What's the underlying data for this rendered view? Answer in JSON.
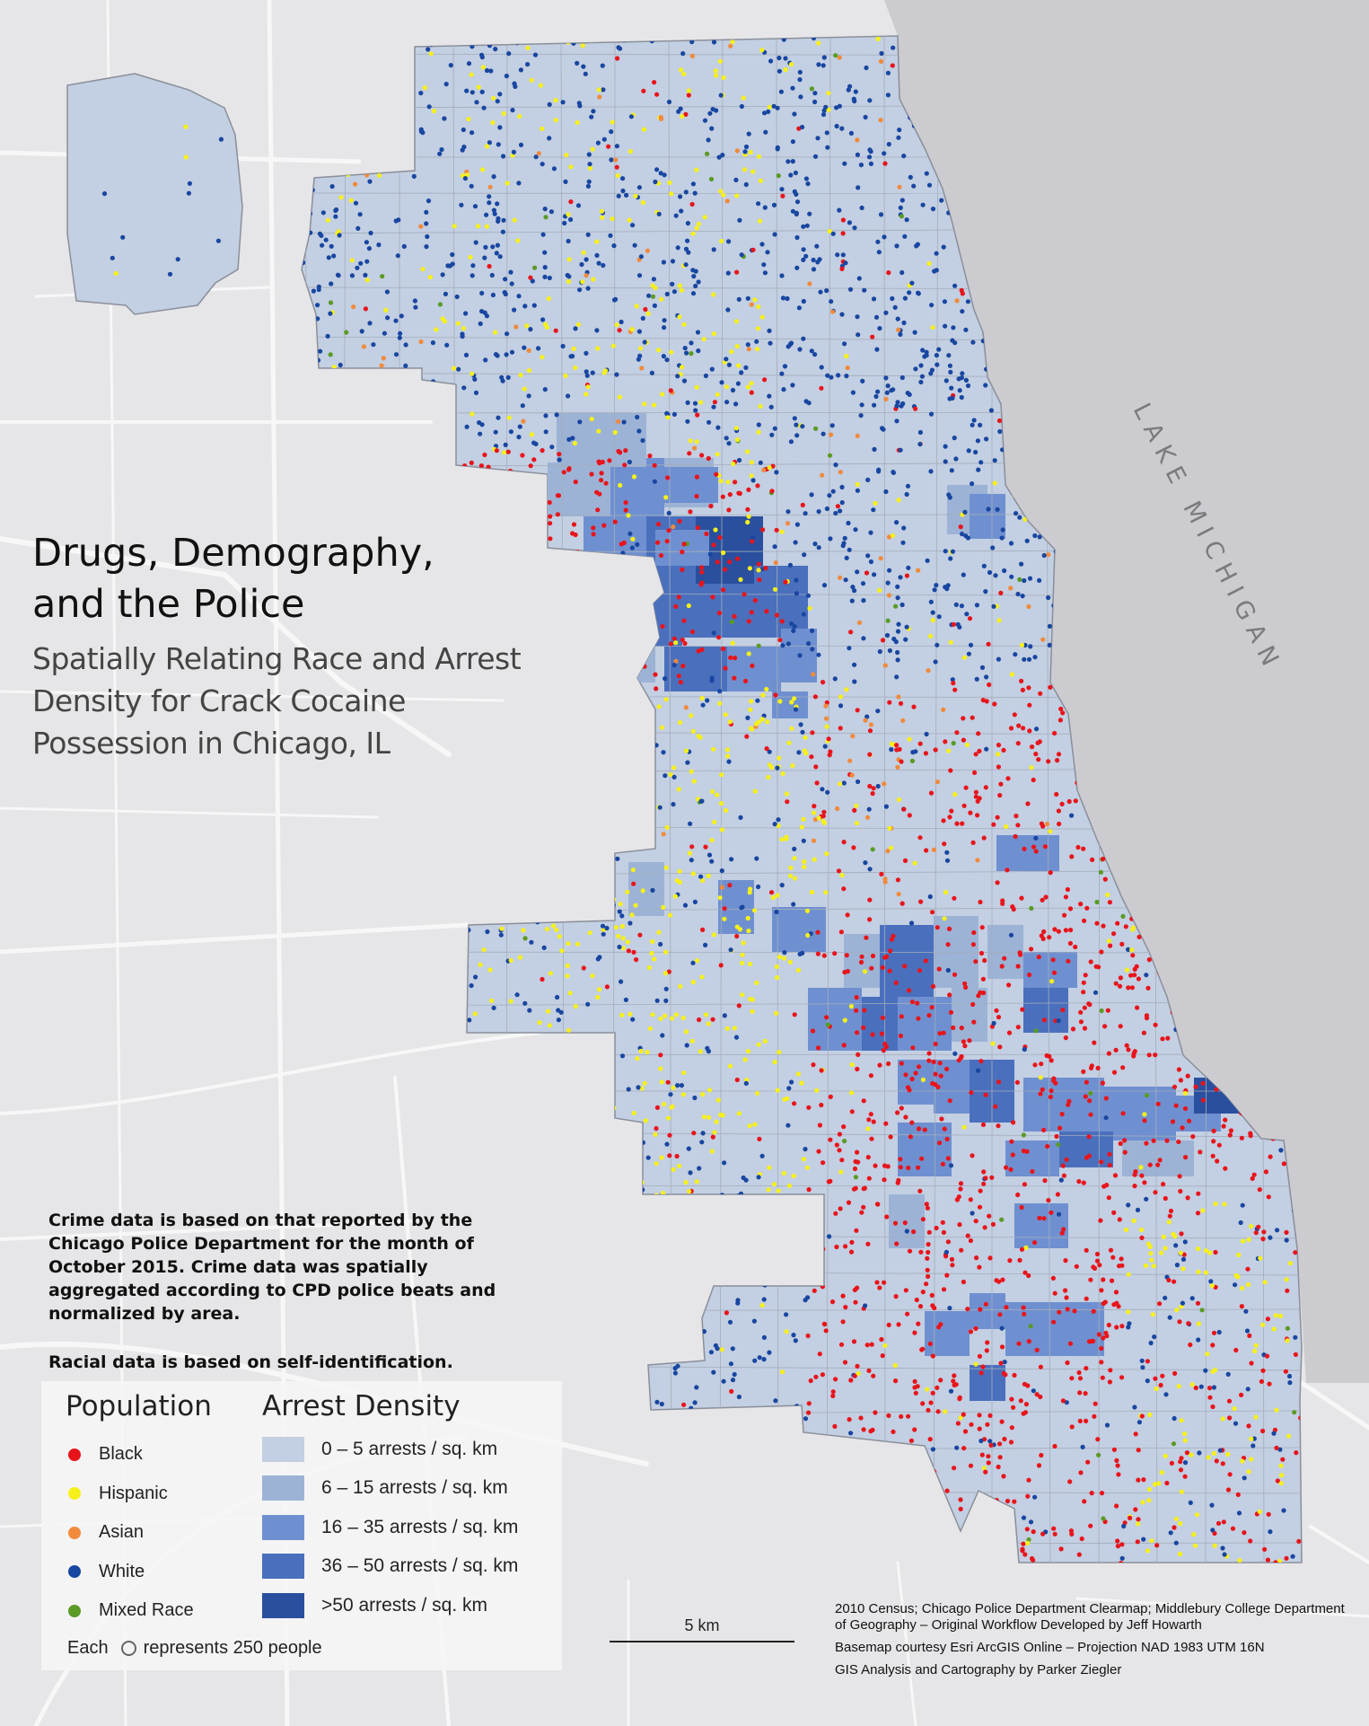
{
  "title": "Drugs, Demography, and the Police",
  "subtitle": "Spatially Relating Race and Arrest Density for Crack Cocaine Possession in Chicago, IL",
  "lake_label": "LAKE MICHIGAN",
  "notes": {
    "crime": "Crime data is based on that reported by the Chicago Police Department for the month of October 2015. Crime data was spatially aggregated according to CPD police beats and normalized by area.",
    "racial": "Racial data is based on self-identification."
  },
  "legend": {
    "population_title": "Population",
    "population": [
      {
        "label": "Black",
        "color": "#e8141b"
      },
      {
        "label": "Hispanic",
        "color": "#f6f01a"
      },
      {
        "label": "Asian",
        "color": "#f08a3c"
      },
      {
        "label": "White",
        "color": "#1846a0"
      },
      {
        "label": "Mixed Race",
        "color": "#5a9a25"
      }
    ],
    "density_title": "Arrest Density",
    "density": [
      {
        "label": "0 – 5 arrests / sq. km",
        "color": "#c3cfe2"
      },
      {
        "label": "6 – 15 arrests / sq. km",
        "color": "#9cb3d6"
      },
      {
        "label": "16 – 35 arrests / sq. km",
        "color": "#6f90d0"
      },
      {
        "label": "36 – 50 arrests / sq. km",
        "color": "#4a6fbd"
      },
      {
        "label": ">50 arrests / sq. km",
        "color": "#2a4f9e"
      }
    ],
    "each_prefix": "Each",
    "each_suffix": "represents 250 people"
  },
  "scale": {
    "label": "5 km"
  },
  "credits": [
    "2010 Census; Chicago Police Department Clearmap; Middlebury College Department of Geography – Original Workflow Developed by Jeff Howarth",
    "Basemap courtesy Esri ArcGIS Online – Projection NAD 1983 UTM 16N",
    "GIS Analysis and Cartography by Parker Ziegler"
  ],
  "colors": {
    "basemap": "#e6e6e8",
    "lake": "#cbcbd0",
    "roads": "#f7f7f8",
    "city_fill": "#c3cfe2",
    "city_outline": "#8a8f9a"
  }
}
